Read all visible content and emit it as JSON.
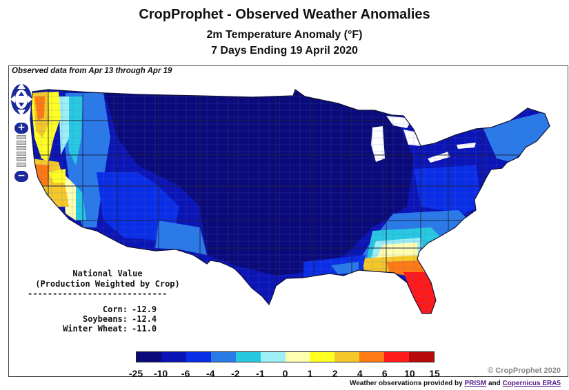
{
  "header": {
    "title": "CropProphet - Observed Weather Anomalies",
    "subtitle": "2m Temperature Anomaly (°F)",
    "period": "7 Days Ending 19 April 2020"
  },
  "map": {
    "observed_note": "Observed data from Apr 13 through Apr 19",
    "region": "Contiguous United States (county-level anomalies)",
    "controls": {
      "pan_icon": "pan-arrows-icon",
      "zoom_in": "+",
      "zoom_out": "−"
    }
  },
  "national_value": {
    "heading_line1": "National Value",
    "heading_line2": "(Production Weighted by Crop)",
    "rule": "----------------------------",
    "rows": [
      {
        "label": "Corn:",
        "value": "-12.9"
      },
      {
        "label": "Soybeans:",
        "value": "-12.4"
      },
      {
        "label": "Winter Wheat:",
        "value": "-11.0"
      }
    ]
  },
  "legend": {
    "colors": [
      "#0a0a7a",
      "#0b14b4",
      "#0a2ee6",
      "#2a7ae8",
      "#28c8e0",
      "#9ceff5",
      "#ffffb0",
      "#ffff22",
      "#f4c828",
      "#ff7a12",
      "#ff1a1a",
      "#b80a0a"
    ],
    "ticks": [
      "-25",
      "-10",
      "-6",
      "-4",
      "-2",
      "-1",
      "0",
      "1",
      "2",
      "4",
      "6",
      "10",
      "15"
    ]
  },
  "footer": {
    "copyright": "© CropProphet 2020",
    "credits_prefix": "Weather observations provided by ",
    "credits_link1": "PRISM",
    "credits_mid": " and ",
    "credits_link2": "Copernicus ERA5"
  }
}
